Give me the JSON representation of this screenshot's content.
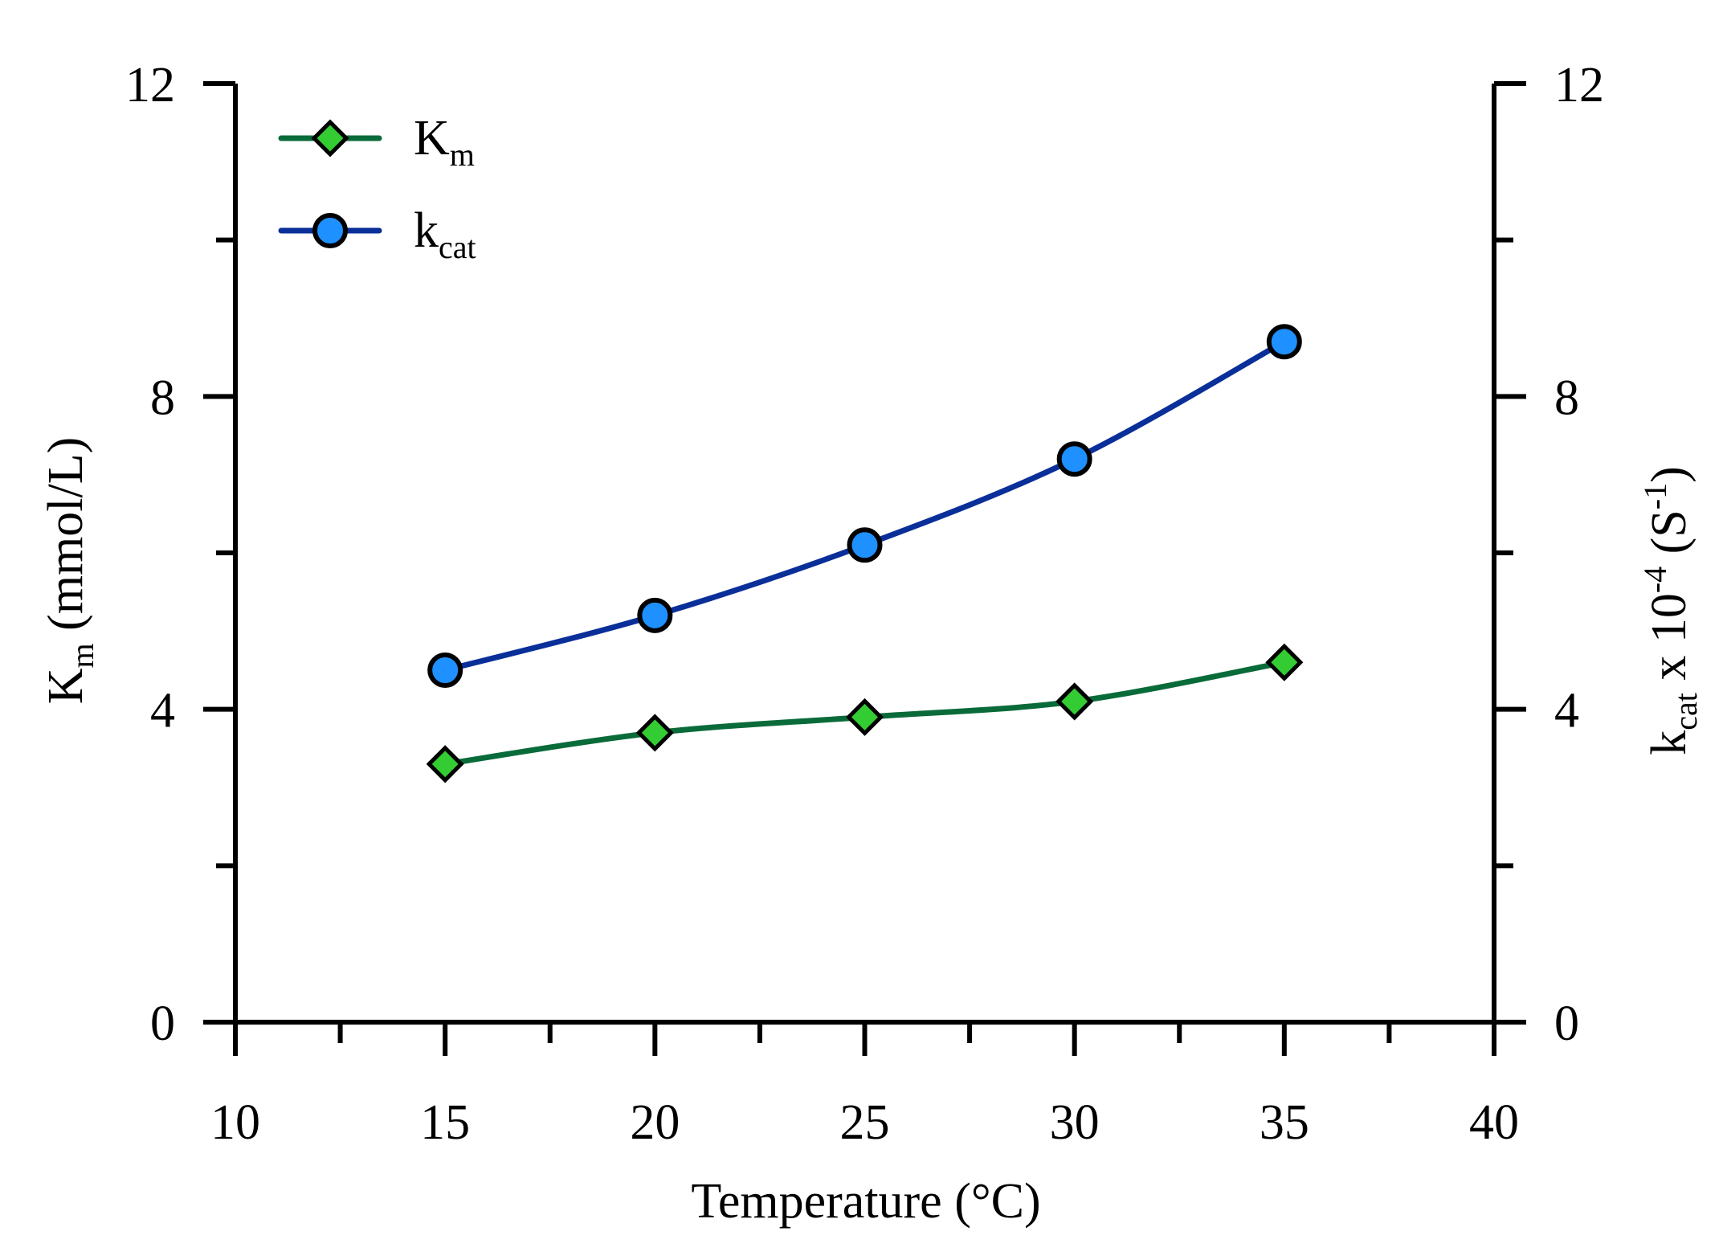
{
  "chart_data": {
    "type": "line",
    "title": "",
    "xlabel": "Temperature (°C)",
    "ylabel": {
      "main": "K",
      "sub": "m",
      "rest": " (mmol/L)"
    },
    "y2label": {
      "main": "k",
      "sub": "cat",
      "mid": " x 10",
      "sup": "-4",
      "rest2": " (S",
      "sup2": "-1",
      "end": ")"
    },
    "xlim": [
      10,
      40
    ],
    "ylim": [
      0,
      12
    ],
    "y2lim": [
      0,
      12
    ],
    "x_ticks": [
      10,
      15,
      20,
      25,
      30,
      35,
      40
    ],
    "x_tick_labels": [
      "10",
      "15",
      "20",
      "25",
      "30",
      "35",
      "40"
    ],
    "y_ticks": [
      0,
      4,
      8,
      12
    ],
    "y_tick_labels": [
      "0",
      "4",
      "8",
      "12"
    ],
    "y2_ticks": [
      0,
      4,
      8,
      12
    ],
    "y2_tick_labels": [
      "0",
      "4",
      "8",
      "12"
    ],
    "x": [
      15,
      20,
      25,
      30,
      35
    ],
    "series": [
      {
        "name": "Km",
        "legend_main": "K",
        "legend_sub": "m",
        "axis": "left",
        "values": [
          3.3,
          3.7,
          3.9,
          4.1,
          4.6
        ],
        "color": "#0a6b3a",
        "marker_color": "#33cc33",
        "marker": "diamond"
      },
      {
        "name": "kcat",
        "legend_main": "k",
        "legend_sub": "cat",
        "axis": "right",
        "values": [
          4.5,
          5.2,
          6.1,
          7.2,
          8.7
        ],
        "color": "#0a2f99",
        "marker_color": "#1e90ff",
        "marker": "circle"
      }
    ],
    "legend_position": "top-left",
    "grid": false
  }
}
